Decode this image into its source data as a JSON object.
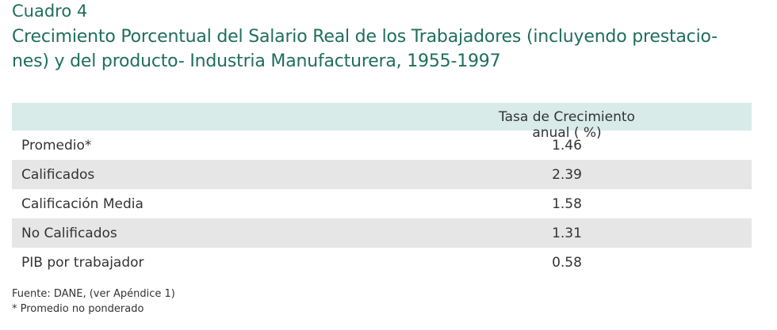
{
  "header": {
    "label": "Cuadro 4",
    "title_lines": [
      "Crecimiento Porcentual del Salario Real de los Trabajadores (incluyendo prestacio-",
      "nes) y del producto- Industria Manufacturera, 1955-1997"
    ]
  },
  "table": {
    "column_header": "Tasa de Crecimiento anual ( %)",
    "rows": [
      [
        "Promedio*",
        1.46
      ],
      [
        "Calificados",
        2.39
      ],
      [
        "Calificación Media",
        1.58
      ],
      [
        "No Calificados",
        1.31
      ],
      [
        "PIB por trabajador",
        0.58
      ]
    ]
  },
  "footnotes": [
    "Fuente: DANE, (ver Apéndice 1)",
    "* Promedio no ponderado"
  ]
}
